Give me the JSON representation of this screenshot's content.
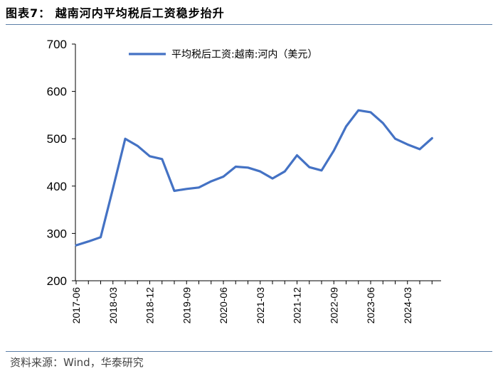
{
  "title": "图表7：  越南河内平均税后工资稳步抬升",
  "source": "资料来源：Wind，华泰研究",
  "colors": {
    "series": "#4472c4",
    "rule": "#5b7fa8"
  },
  "chart_data": {
    "type": "line",
    "xlabel": "",
    "ylabel": "",
    "ylim": [
      200,
      700
    ],
    "yticks": [
      200,
      300,
      400,
      500,
      600,
      700
    ],
    "x_tick_labels": [
      "2017-06",
      "2018-03",
      "2018-12",
      "2019-09",
      "2020-06",
      "2021-03",
      "2021-12",
      "2022-09",
      "2023-06",
      "2024-03"
    ],
    "legend": {
      "position": "top",
      "entries": [
        "平均税后工资:越南:河内（美元）"
      ]
    },
    "grid": false,
    "x": [
      "2017-06",
      "2017-09",
      "2017-12",
      "2018-03",
      "2018-06",
      "2018-09",
      "2018-12",
      "2019-03",
      "2019-06",
      "2019-09",
      "2019-12",
      "2020-03",
      "2020-06",
      "2020-09",
      "2020-12",
      "2021-03",
      "2021-06",
      "2021-09",
      "2021-12",
      "2022-03",
      "2022-06",
      "2022-09",
      "2022-12",
      "2023-03",
      "2023-06",
      "2023-09",
      "2023-12",
      "2024-03",
      "2024-06",
      "2024-09"
    ],
    "series": [
      {
        "name": "平均税后工资:越南:河内（美元）",
        "values": [
          275,
          283,
          292,
          395,
          500,
          485,
          463,
          457,
          390,
          394,
          397,
          410,
          420,
          441,
          439,
          431,
          416,
          431,
          465,
          440,
          433,
          475,
          526,
          560,
          556,
          533,
          500,
          488,
          478,
          501
        ]
      }
    ]
  }
}
